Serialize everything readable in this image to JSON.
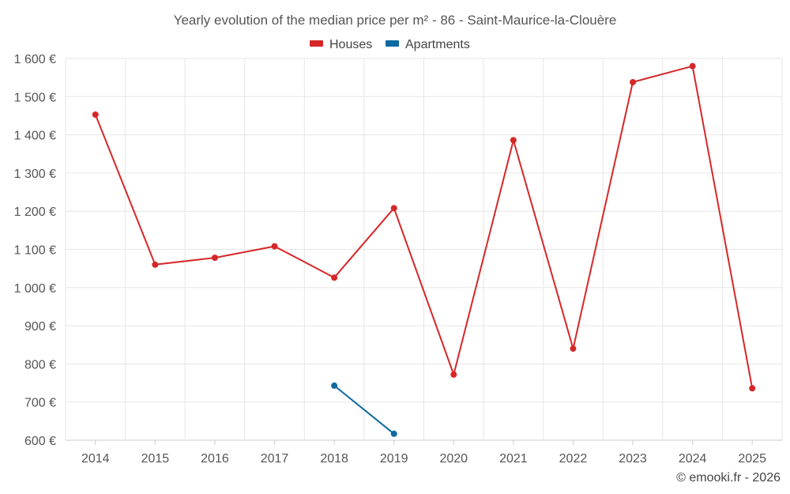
{
  "chart_data": {
    "type": "line",
    "title": "Yearly evolution of the median price per m² - 86 - Saint-Maurice-la-Clouère",
    "categories": [
      "2014",
      "2015",
      "2016",
      "2017",
      "2018",
      "2019",
      "2020",
      "2021",
      "2022",
      "2023",
      "2024",
      "2025"
    ],
    "series": [
      {
        "name": "Houses",
        "color": "#d62728",
        "values": [
          1453,
          1060,
          1078,
          1108,
          1026,
          1208,
          772,
          1386,
          840,
          1538,
          1580,
          736
        ]
      },
      {
        "name": "Apartments",
        "color": "#0e6aa0",
        "values": [
          null,
          null,
          null,
          null,
          743,
          617,
          null,
          null,
          null,
          null,
          null,
          null
        ]
      }
    ],
    "ylim": [
      600,
      1600
    ],
    "yticks": [
      600,
      700,
      800,
      900,
      1000,
      1100,
      1200,
      1300,
      1400,
      1500,
      1600
    ],
    "ytick_labels": [
      "600 €",
      "700 €",
      "800 €",
      "900 €",
      "1 000 €",
      "1 100 €",
      "1 200 €",
      "1 300 €",
      "1 400 €",
      "1 500 €",
      "1 600 €"
    ],
    "xlabel": "",
    "ylabel": "",
    "grid": true,
    "legend_position": "top-center"
  },
  "credit": "© emooki.fr - 2026"
}
